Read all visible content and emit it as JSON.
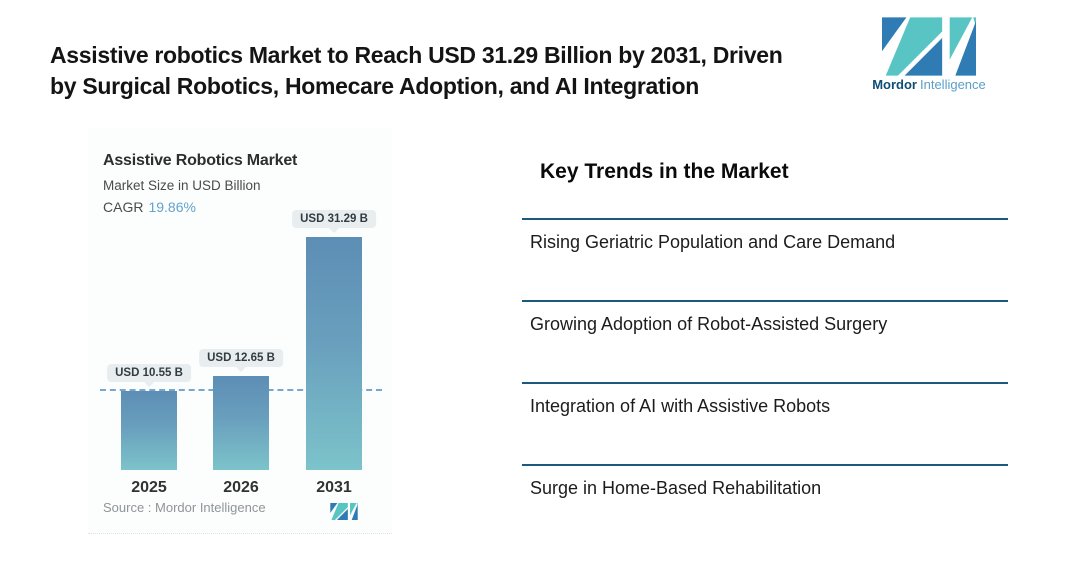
{
  "header": {
    "title_line1": "Assistive robotics Market to Reach USD 31.29 Billion by 2031, Driven",
    "title_line2": "by Surgical Robotics, Homecare Adoption, and AI Integration"
  },
  "brand": {
    "name_primary": "Mordor",
    "name_secondary": "Intelligence",
    "logo_teal": "#58c5c4",
    "logo_blue": "#2f7cb5"
  },
  "chart_data": {
    "type": "bar",
    "title": "Assistive Robotics Market",
    "subtitle": "Market Size in USD Billion",
    "cagr_label": "CAGR",
    "cagr_value": "19.86%",
    "categories": [
      "2025",
      "2026",
      "2031"
    ],
    "values": [
      10.55,
      12.65,
      31.29
    ],
    "value_labels": [
      "USD 10.55 B",
      "USD 12.65 B",
      "USD 31.29 B"
    ],
    "unit": "USD Billion",
    "ylim": [
      0,
      35
    ],
    "grid": false,
    "legend": "none",
    "reference_line": "dashed horizontal line at the 2025 value (10.55)",
    "reference_line_color": "#77a7cf",
    "bar_gradient_top": "#5d8eb5",
    "bar_gradient_bottom": "#7cc3ca",
    "source": "Source :  Mordor Intelligence"
  },
  "trends": {
    "heading": "Key Trends in the Market",
    "rule_color": "#1b5a7c",
    "items": [
      "Rising Geriatric Population and Care Demand",
      "Growing Adoption of Robot-Assisted Surgery",
      "Integration of AI with Assistive Robots",
      "Surge in Home-Based Rehabilitation"
    ]
  }
}
